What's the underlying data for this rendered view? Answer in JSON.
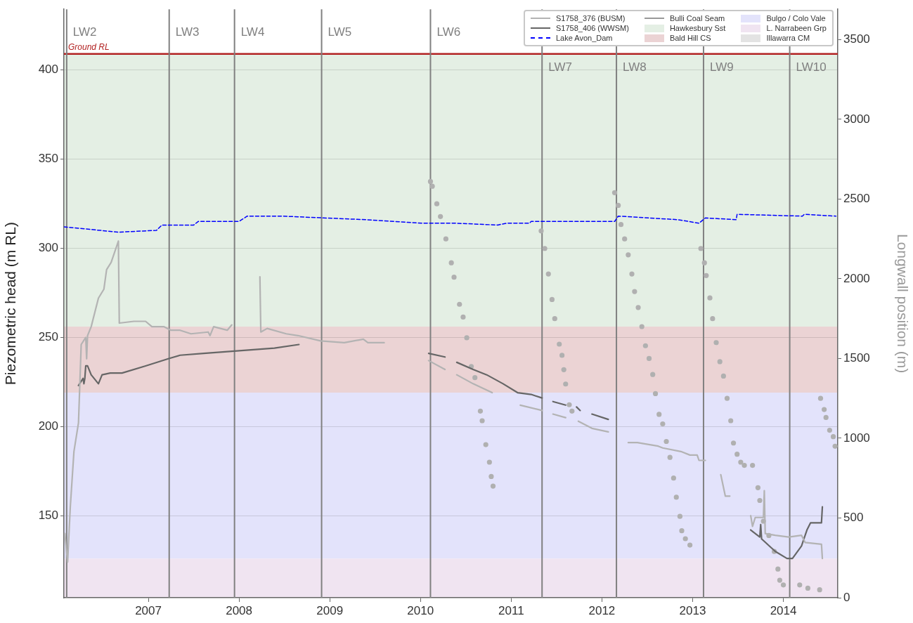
{
  "chart_data": {
    "type": "line",
    "ylabel": "Piezometric head (m RL)",
    "y2label": "Longwall position (m)",
    "xlim": [
      2006.07,
      2014.6
    ],
    "xticks": [
      2007,
      2008,
      2009,
      2010,
      2011,
      2012,
      2013,
      2014
    ],
    "ylim": [
      104,
      434
    ],
    "yticks": [
      150,
      200,
      250,
      300,
      350,
      400
    ],
    "y2lim": [
      0,
      3690
    ],
    "y2ticks": [
      0,
      500,
      1000,
      1500,
      2000,
      2500,
      3000,
      3500
    ],
    "grid": "y",
    "legend": "top right",
    "series": [
      {
        "name": "S1758_376 (BUSM)",
        "color": "#b3b3b3",
        "line_style": "solid",
        "marker": "none",
        "x": [
          2006.08,
          2006.11,
          2006.14,
          2006.18,
          2006.23,
          2006.26,
          2006.31,
          2006.32,
          2006.33,
          2006.37,
          2006.45,
          2006.51,
          2006.54,
          2006.59,
          2006.67,
          2006.68,
          2006.84,
          2006.97,
          2007.04,
          2007.17,
          2007.25,
          2007.35,
          2007.47,
          2007.66,
          2007.68,
          2007.72,
          2007.87,
          2007.92,
          2008.0,
          2008.23,
          2008.24,
          2008.31,
          2008.52,
          2008.65,
          2008.9,
          2009.16,
          2009.37,
          2009.42,
          2009.6,
          2009.8,
          2010.09,
          2010.27,
          2010.33,
          2010.4,
          2010.58,
          2010.79,
          2010.95,
          2011.1,
          2011.34,
          2011.4,
          2011.46,
          2011.6,
          2011.67,
          2011.74,
          2011.89,
          2012.07,
          2012.18,
          2012.29,
          2012.39,
          2012.62,
          2012.67,
          2012.87,
          2012.97,
          2013.05,
          2013.07,
          2013.14,
          2013.22,
          2013.31,
          2013.36,
          2013.41,
          2013.5,
          2013.64,
          2013.66,
          2013.69,
          2013.78,
          2013.79,
          2013.8,
          2013.91,
          2014.06,
          2014.2,
          2014.24,
          2014.42,
          2014.43
        ],
        "values": [
          140,
          124,
          155,
          186,
          202,
          246,
          250,
          238,
          251,
          256,
          272,
          277,
          288,
          292,
          304,
          258,
          259,
          259,
          256,
          256,
          254,
          254,
          252,
          253,
          251,
          256,
          254,
          257,
          null,
          284,
          253,
          255,
          252,
          251,
          248,
          247,
          249,
          247,
          247,
          null,
          237,
          232,
          null,
          229,
          224,
          219,
          null,
          212,
          209,
          null,
          207,
          205,
          null,
          203,
          199,
          197,
          null,
          191,
          191,
          189,
          188,
          186,
          184,
          184,
          181,
          181,
          null,
          173,
          161,
          161,
          null,
          150,
          144,
          149,
          149,
          164,
          140,
          139,
          138,
          139,
          135,
          134,
          126
        ]
      },
      {
        "name": "S1758_406 (WWSM)",
        "color": "#666666",
        "line_style": "solid",
        "marker": "none",
        "x": [
          2006.23,
          2006.28,
          2006.29,
          2006.3,
          2006.31,
          2006.33,
          2006.37,
          2006.45,
          2006.49,
          2006.58,
          2006.68,
          2006.71,
          2006.97,
          2007.22,
          2007.35,
          2007.61,
          2007.87,
          2008.13,
          2008.39,
          2008.66,
          2009.0,
          2010.09,
          2010.27,
          2010.33,
          2010.4,
          2010.58,
          2010.73,
          2010.91,
          2011.07,
          2011.22,
          2011.34,
          2011.4,
          2011.46,
          2011.6,
          2011.67,
          2011.72,
          2011.76,
          2011.82,
          2011.89,
          2012.07,
          2012.5,
          2013.64,
          2013.74,
          2013.75,
          2013.76,
          2013.91,
          2014.04,
          2014.1,
          2014.2,
          2014.26,
          2014.3,
          2014.42,
          2014.43
        ],
        "values": [
          223,
          227,
          224,
          227,
          234,
          234,
          229,
          224,
          229,
          230,
          230,
          230,
          234,
          238,
          240,
          241,
          242,
          243,
          244,
          246,
          null,
          241,
          239,
          null,
          236,
          232,
          229,
          224,
          219,
          218,
          216,
          null,
          214,
          212,
          null,
          211,
          209,
          null,
          207,
          204,
          null,
          142,
          138,
          145,
          137,
          130,
          126,
          126,
          133,
          142,
          146,
          146,
          155
        ]
      },
      {
        "name": "Lake Avon_Dam",
        "color": "#0000ff",
        "line_style": "dashed",
        "marker": "none",
        "x": [
          2006.07,
          2006.67,
          2007.09,
          2007.15,
          2007.5,
          2007.55,
          2008.0,
          2008.09,
          2008.47,
          2008.93,
          2009.4,
          2010.02,
          2010.09,
          2010.4,
          2010.85,
          2010.95,
          2011.2,
          2011.22,
          2011.43,
          2012.14,
          2012.18,
          2012.84,
          2013.07,
          2013.14,
          2013.48,
          2013.49,
          2014.21,
          2014.23,
          2014.58
        ],
        "values": [
          312,
          309,
          310,
          313,
          313,
          315,
          315,
          318,
          318,
          317,
          316,
          314,
          314,
          314,
          313,
          314,
          314,
          315,
          315,
          315,
          318,
          316,
          314,
          317,
          316,
          319,
          318,
          319,
          318
        ]
      },
      {
        "name": "Bulli Coal Seam",
        "color": "#999999",
        "line_style": "solid",
        "marker": "none"
      },
      {
        "name": "Illawarra CM",
        "type": "area",
        "color": "#e3e3e3"
      },
      {
        "type": "scatter",
        "axis": "y2",
        "color": "#b0b0b0",
        "marker": "circle",
        "x": [
          2010.11,
          2010.13,
          2010.18,
          2010.22,
          2010.28,
          2010.34,
          2010.37,
          2010.43,
          2010.47,
          2010.51,
          2010.56,
          2010.6,
          2010.66,
          2010.68,
          2010.72,
          2010.76,
          2010.78,
          2010.8,
          2011.33,
          2011.37,
          2011.41,
          2011.45,
          2011.48,
          2011.53,
          2011.56,
          2011.58,
          2011.6,
          2011.64,
          2011.67,
          2012.14,
          2012.18,
          2012.21,
          2012.25,
          2012.29,
          2012.33,
          2012.36,
          2012.4,
          2012.44,
          2012.48,
          2012.52,
          2012.56,
          2012.59,
          2012.63,
          2012.67,
          2012.71,
          2012.75,
          2012.79,
          2012.82,
          2012.86,
          2012.88,
          2012.92,
          2012.97,
          2013.09,
          2013.13,
          2013.15,
          2013.19,
          2013.22,
          2013.26,
          2013.3,
          2013.34,
          2013.38,
          2013.42,
          2013.45,
          2013.49,
          2013.53,
          2013.57,
          2013.66,
          2013.72,
          2013.74,
          2013.78,
          2013.84,
          2013.9,
          2013.94,
          2013.96,
          2014.0,
          2014.18,
          2014.27,
          2014.4,
          2014.41,
          2014.45,
          2014.47,
          2014.51,
          2014.55,
          2014.57
        ],
        "values": [
          2610,
          2580,
          2470,
          2390,
          2250,
          2100,
          2010,
          1840,
          1760,
          1630,
          1450,
          1380,
          1170,
          1110,
          960,
          850,
          760,
          700,
          2300,
          2190,
          2030,
          1870,
          1750,
          1590,
          1520,
          1430,
          1340,
          1210,
          1170,
          2540,
          2460,
          2340,
          2250,
          2150,
          2030,
          1920,
          1820,
          1700,
          1580,
          1500,
          1400,
          1280,
          1150,
          1090,
          980,
          880,
          750,
          630,
          510,
          420,
          370,
          330,
          2190,
          2100,
          2020,
          1880,
          1750,
          1600,
          1480,
          1390,
          1250,
          1110,
          970,
          900,
          850,
          830,
          830,
          690,
          610,
          480,
          390,
          290,
          180,
          110,
          80,
          80,
          60,
          50,
          1250,
          1180,
          1130,
          1050,
          1010,
          950
        ]
      }
    ],
    "bands": [
      {
        "axis": "y",
        "from": 256,
        "to": 409,
        "label": "Hawkesbury Sst",
        "color": "#e4efe4"
      },
      {
        "axis": "y",
        "from": 219,
        "to": 256,
        "label": "Bald Hill CS",
        "color": "#ebd3d4"
      },
      {
        "axis": "y",
        "from": 126,
        "to": 219,
        "label": "Bulgo / Colo Vale",
        "color": "#e3e3fb"
      },
      {
        "axis": "y",
        "from": 104,
        "to": 126,
        "label": "L. Narrabeen Grp",
        "color": "#f0e4f1"
      }
    ],
    "ref_lines": [
      {
        "axis": "y",
        "value": 409,
        "label": "Ground RL",
        "color": "#b22222"
      },
      {
        "axis": "x",
        "value": 2006.1,
        "label": "LW2",
        "color": "#808080"
      },
      {
        "axis": "x",
        "value": 2007.23,
        "label": "LW3",
        "color": "#808080"
      },
      {
        "axis": "x",
        "value": 2007.95,
        "label": "LW4",
        "color": "#808080"
      },
      {
        "axis": "x",
        "value": 2008.91,
        "label": "LW5",
        "color": "#808080"
      },
      {
        "axis": "x",
        "value": 2010.11,
        "label": "LW6",
        "color": "#808080"
      },
      {
        "axis": "x",
        "value": 2011.34,
        "label": "LW7",
        "color": "#808080"
      },
      {
        "axis": "x",
        "value": 2012.16,
        "label": "LW8",
        "color": "#808080"
      },
      {
        "axis": "x",
        "value": 2013.12,
        "label": "LW9",
        "color": "#808080"
      },
      {
        "axis": "x",
        "value": 2014.07,
        "label": "LW10",
        "color": "#808080"
      }
    ]
  }
}
